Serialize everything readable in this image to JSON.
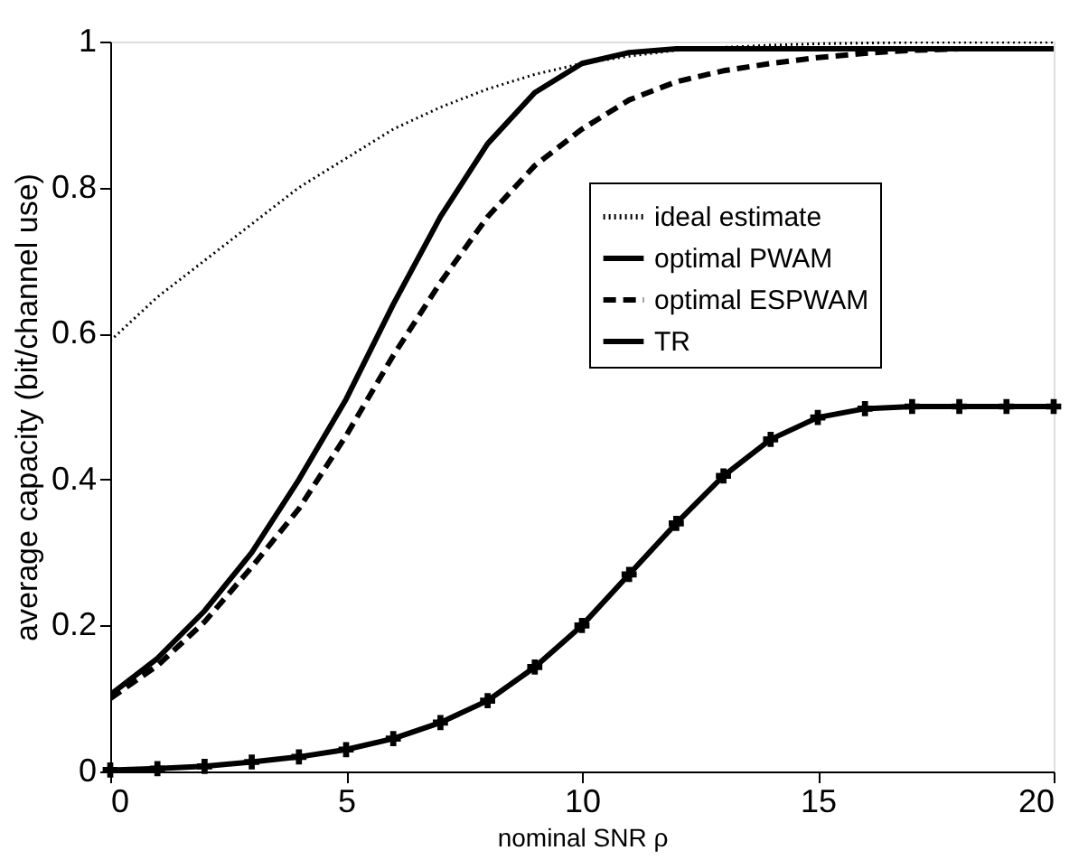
{
  "chart_data": {
    "type": "line",
    "xlabel": "nominal SNR ρ",
    "ylabel": "average capacity (bit/channel use)",
    "x": [
      0,
      1,
      2,
      3,
      4,
      5,
      6,
      7,
      8,
      9,
      10,
      11,
      12,
      13,
      14,
      15,
      16,
      17,
      18,
      19,
      20
    ],
    "series": [
      {
        "name": "ideal estimate",
        "color": "#000000",
        "line_style": "dotted",
        "values": [
          0.59,
          0.65,
          0.7,
          0.75,
          0.8,
          0.84,
          0.88,
          0.91,
          0.935,
          0.955,
          0.97,
          0.98,
          0.988,
          0.992,
          0.995,
          0.997,
          0.998,
          0.999,
          0.999,
          0.999,
          0.999
        ]
      },
      {
        "name": "optimal PWAM",
        "color": "#000000",
        "line_style": "solid",
        "values": [
          0.105,
          0.155,
          0.22,
          0.3,
          0.4,
          0.51,
          0.64,
          0.76,
          0.86,
          0.93,
          0.97,
          0.985,
          0.99,
          0.99,
          0.99,
          0.99,
          0.99,
          0.99,
          0.99,
          0.99,
          0.99
        ]
      },
      {
        "name": "optimal ESPWAM",
        "color": "#000000",
        "line_style": "dashed",
        "values": [
          0.1,
          0.145,
          0.205,
          0.28,
          0.36,
          0.46,
          0.57,
          0.67,
          0.76,
          0.83,
          0.88,
          0.92,
          0.945,
          0.96,
          0.97,
          0.978,
          0.984,
          0.988,
          0.99,
          0.99,
          0.99
        ]
      },
      {
        "name": "TR",
        "color": "#000000",
        "line_style": "solid",
        "marker": "cross",
        "values": [
          0.002,
          0.004,
          0.007,
          0.013,
          0.02,
          0.03,
          0.045,
          0.067,
          0.097,
          0.143,
          0.2,
          0.27,
          0.34,
          0.405,
          0.455,
          0.485,
          0.497,
          0.5,
          0.5,
          0.5,
          0.5
        ]
      }
    ],
    "xlim": [
      0,
      20
    ],
    "xticks": [
      0,
      5,
      10,
      15,
      20
    ],
    "ylim": [
      0,
      1
    ],
    "yticks": [
      0,
      0.2,
      0.4,
      0.6,
      0.8,
      1
    ],
    "grid": false,
    "legend": "right"
  }
}
